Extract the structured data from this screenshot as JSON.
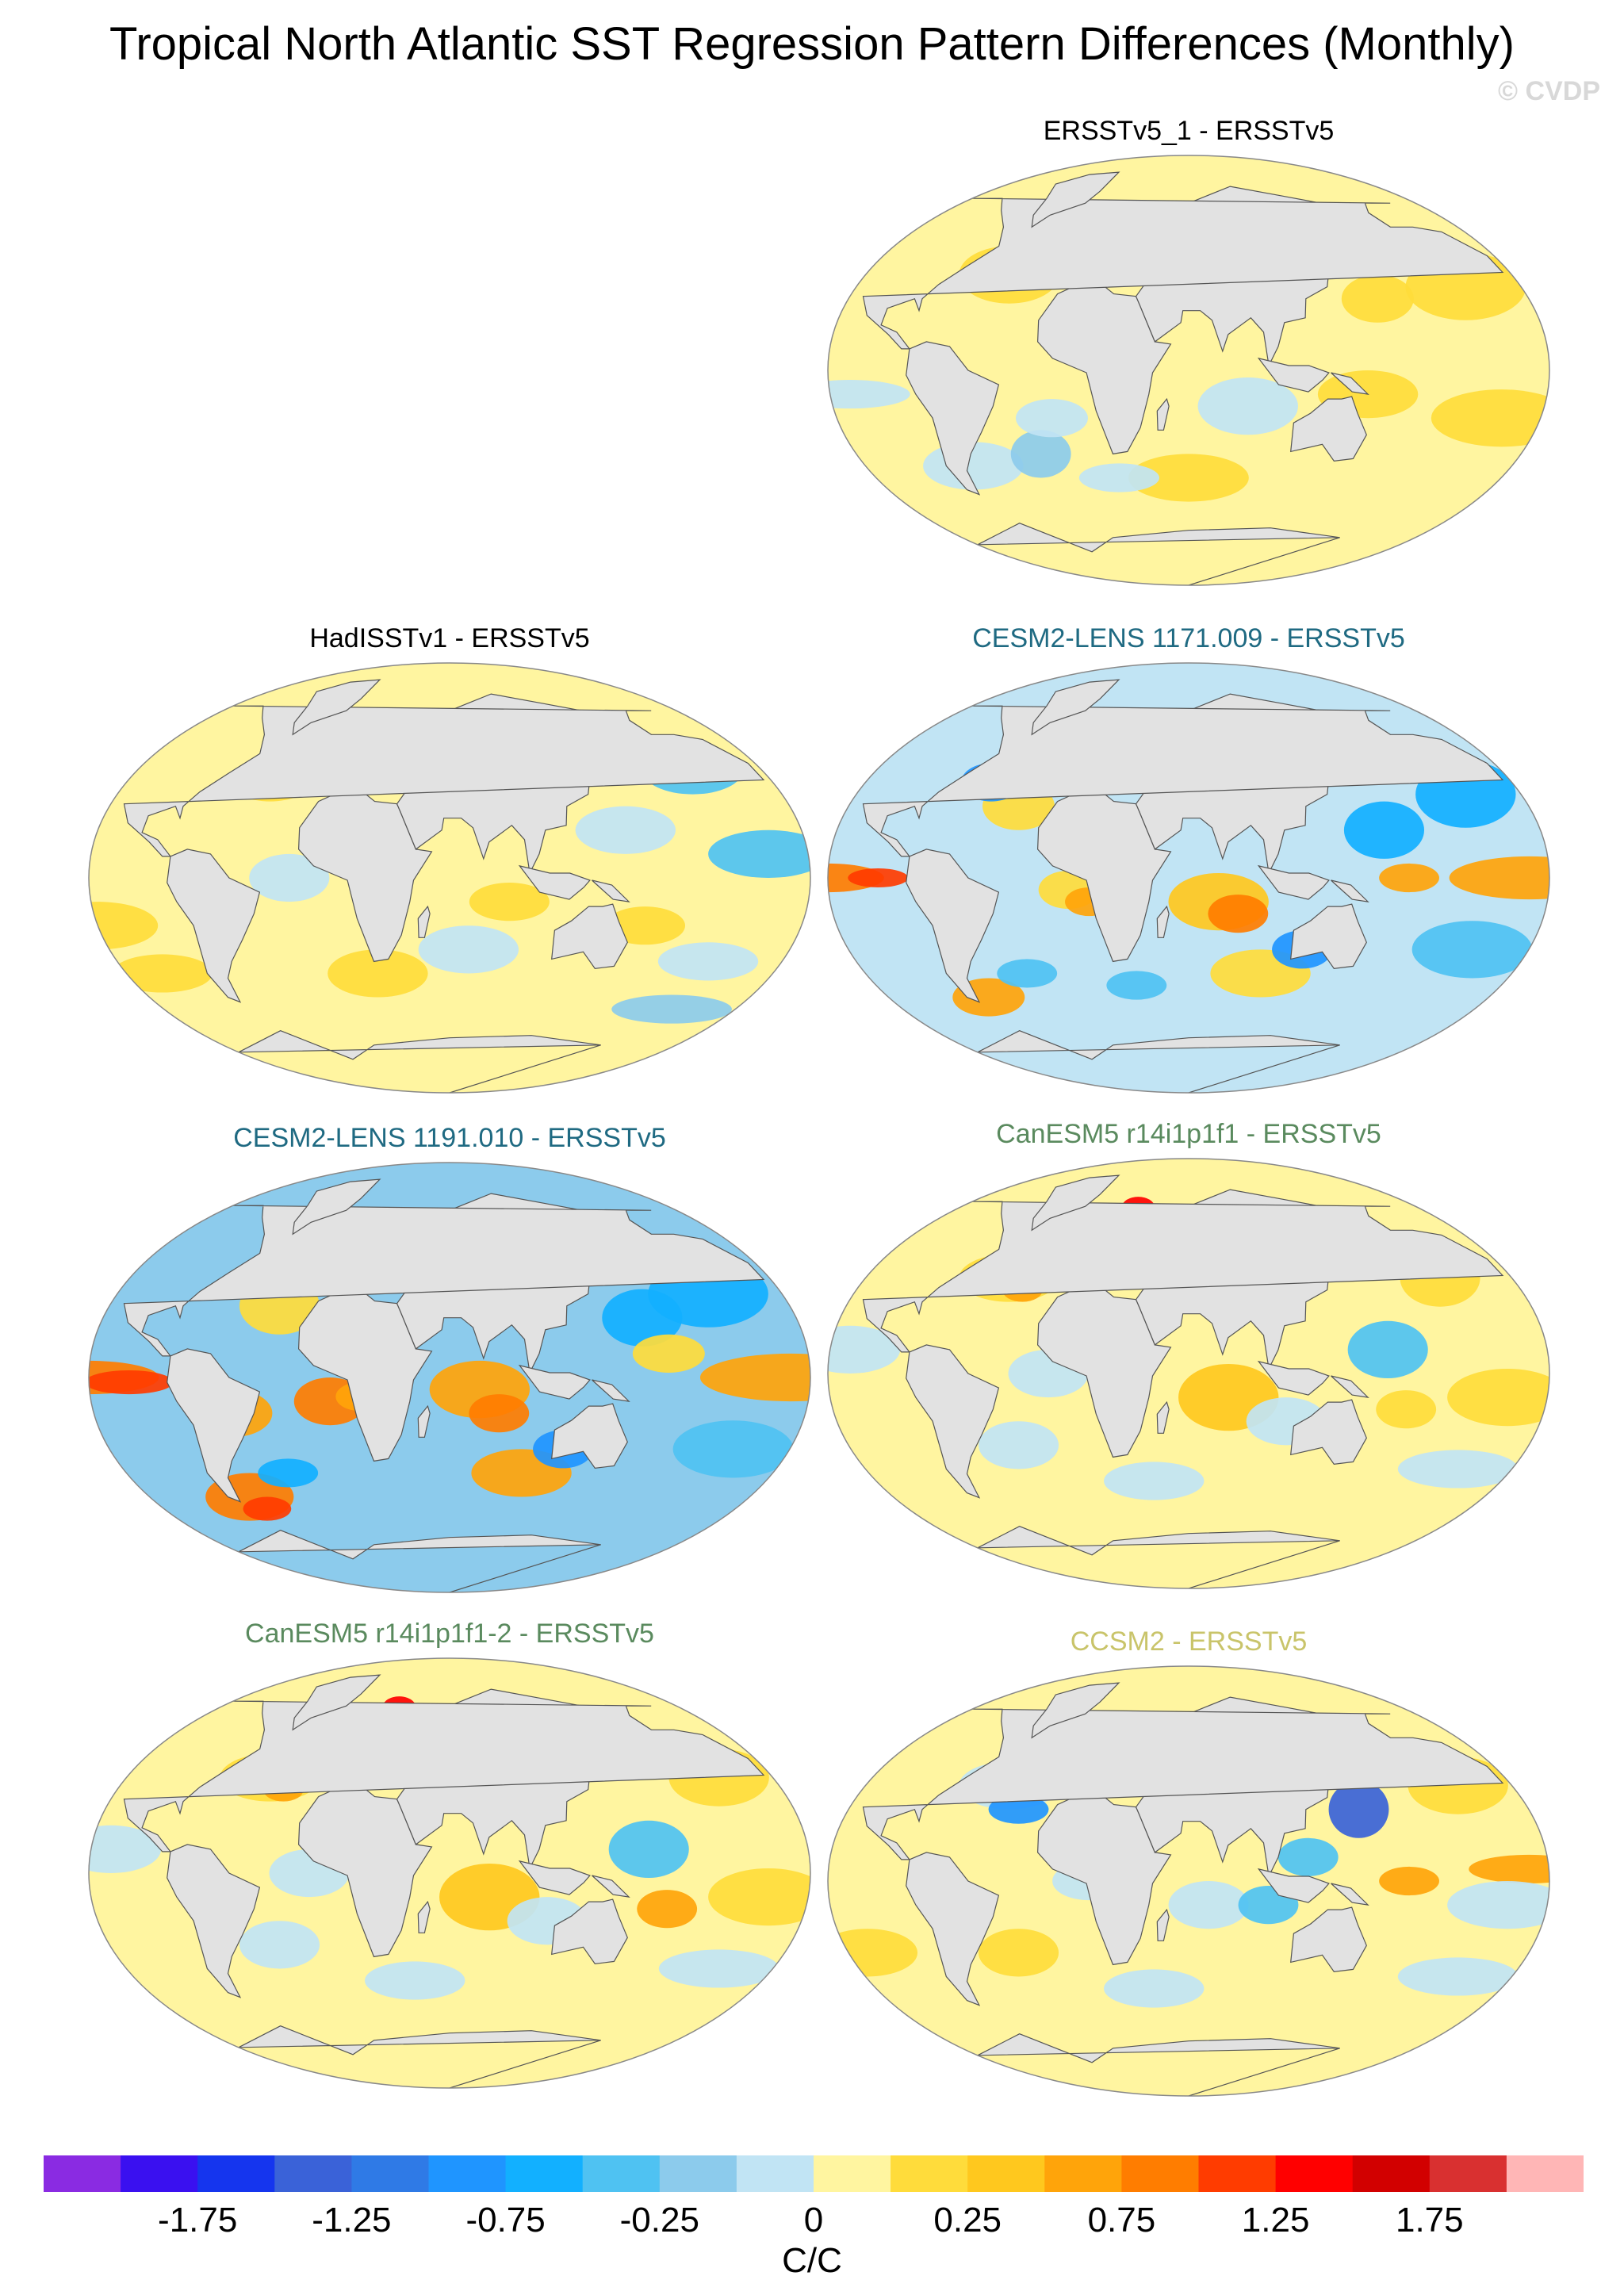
{
  "title": "Tropical North Atlantic SST Regression Pattern Differences (Monthly)",
  "copyright": "© CVDP",
  "panels": [
    {
      "title": "ERSSTv5_1 - ERSSTv5",
      "title_color": "#000000",
      "variant": "mild"
    },
    {
      "title": "HadISSTv1 - ERSSTv5",
      "title_color": "#000000",
      "variant": "noisy"
    },
    {
      "title": "CESM2-LENS 1171.009 - ERSSTv5",
      "title_color": "#1f6a82",
      "variant": "enso"
    },
    {
      "title": "CESM2-LENS 1191.010 - ERSSTv5",
      "title_color": "#1f6a82",
      "variant": "enso_strong"
    },
    {
      "title": "CanESM5 r14i1p1f1 - ERSSTv5",
      "title_color": "#5a8a5e",
      "variant": "can"
    },
    {
      "title": "CanESM5 r14i1p1f1-2 - ERSSTv5",
      "title_color": "#5a8a5e",
      "variant": "can2"
    },
    {
      "title": "CCSM2 - ERSSTv5",
      "title_color": "#c9c46a",
      "variant": "ccsm"
    }
  ],
  "colorbar": {
    "colors": [
      "#8a2be2",
      "#3a10f0",
      "#1535ee",
      "#3a62d8",
      "#2f7ae6",
      "#1f95ff",
      "#12b0ff",
      "#4fc2f2",
      "#8ccbec",
      "#c1e4f4",
      "#fff5a0",
      "#ffdc3b",
      "#ffc81e",
      "#ffa40a",
      "#ff7d00",
      "#ff3c00",
      "#ff0000",
      "#d20000",
      "#d93030",
      "#ffb6b6"
    ],
    "tick_labels": [
      "-1.75",
      "-1.25",
      "-0.75",
      "-0.25",
      "0",
      "0.25",
      "0.75",
      "1.25",
      "1.75"
    ],
    "units": "C/C"
  }
}
